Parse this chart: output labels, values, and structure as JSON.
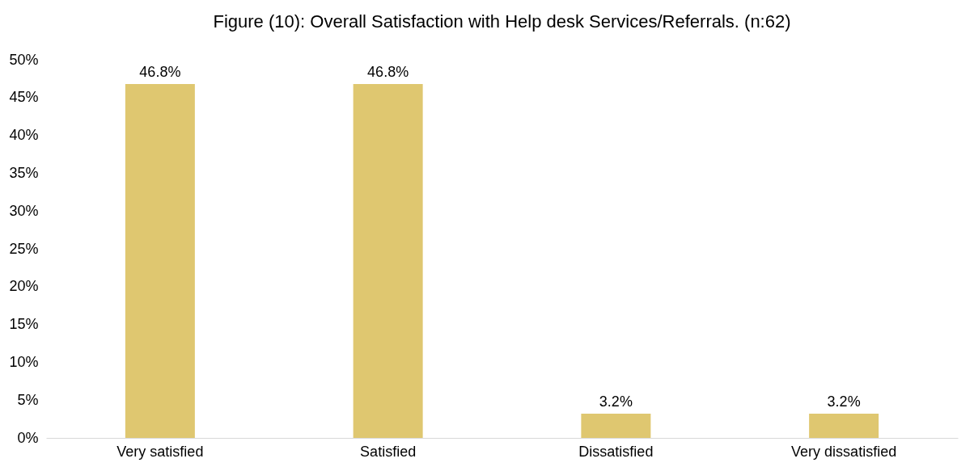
{
  "chart_data": {
    "type": "bar",
    "title": "Figure (10): Overall Satisfaction with Help desk Services/Referrals. (n:62)",
    "categories": [
      "Very satisfied",
      "Satisfied",
      "Dissatisfied",
      "Very dissatisfied"
    ],
    "values": [
      46.8,
      46.8,
      3.2,
      3.2
    ],
    "value_labels": [
      "46.8%",
      "46.8%",
      "3.2%",
      "3.2%"
    ],
    "color": "#dfc770",
    "ylim": [
      0,
      50
    ],
    "yticks": [
      {
        "value": 0,
        "label": "0%"
      },
      {
        "value": 5,
        "label": "5%"
      },
      {
        "value": 10,
        "label": "10%"
      },
      {
        "value": 15,
        "label": "15%"
      },
      {
        "value": 20,
        "label": "20%"
      },
      {
        "value": 25,
        "label": "25%"
      },
      {
        "value": 30,
        "label": "30%"
      },
      {
        "value": 35,
        "label": "35%"
      },
      {
        "value": 40,
        "label": "40%"
      },
      {
        "value": 45,
        "label": "45%"
      },
      {
        "value": 50,
        "label": "50%"
      }
    ],
    "grid": false
  }
}
